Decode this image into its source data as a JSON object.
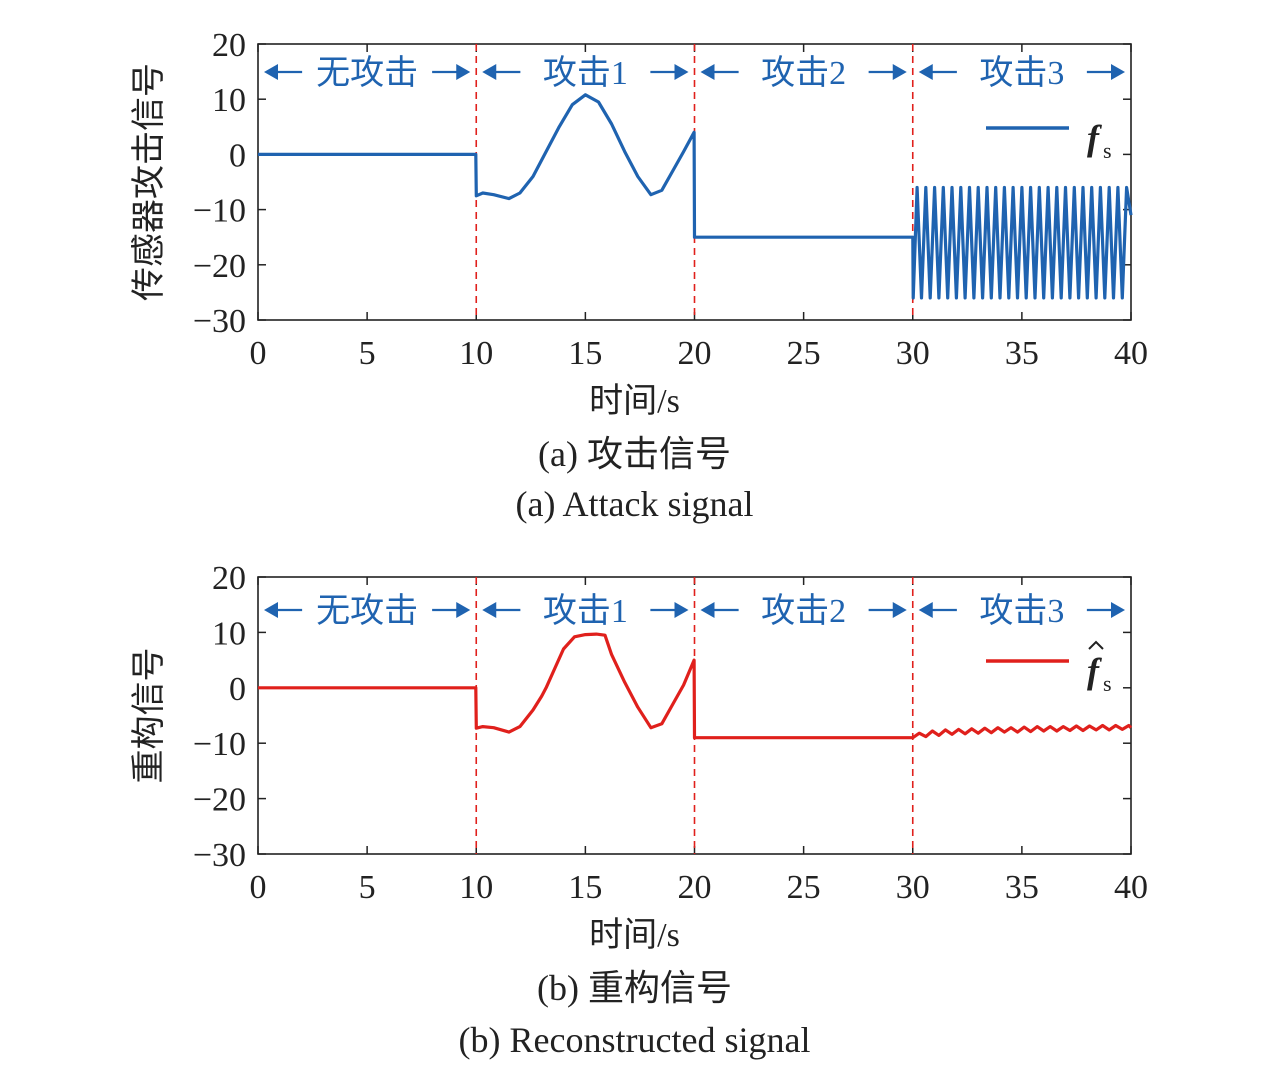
{
  "colors": {
    "attack": "#1f63b0",
    "recon": "#e0201c",
    "divider": "#e0201c",
    "segment_text": "#1f63b0",
    "axis": "#222222"
  },
  "chart_data": [
    {
      "type": "line",
      "panel": "a",
      "xlabel": "时间/s",
      "ylabel": "传感器攻击信号",
      "caption_cn": "(a) 攻击信号",
      "caption_en": "(a) Attack signal",
      "xlim": [
        0,
        40
      ],
      "ylim": [
        -30,
        20
      ],
      "xticks": [
        0,
        5,
        10,
        15,
        20,
        25,
        30,
        35,
        40
      ],
      "yticks": [
        20,
        10,
        0,
        -10,
        -20,
        -30
      ],
      "ytick_labels": [
        "20",
        "10",
        "0",
        "−10",
        "−20",
        "−30"
      ],
      "dividers": [
        10,
        20,
        30
      ],
      "segments": [
        {
          "label": "无攻击",
          "start": 0,
          "end": 10
        },
        {
          "label": "攻击1",
          "start": 10,
          "end": 20
        },
        {
          "label": "攻击2",
          "start": 20,
          "end": 30
        },
        {
          "label": "攻击3",
          "start": 30,
          "end": 40
        }
      ],
      "legend": {
        "main": "f",
        "sub": "s",
        "hat": false,
        "position": "top-right"
      },
      "series": [
        {
          "color": "#1f63b0",
          "x": [
            0,
            9.98,
            10,
            10.3,
            10.8,
            11.5,
            12.0,
            12.6,
            13.2,
            13.8,
            14.4,
            15.0,
            15.6,
            16.2,
            16.8,
            17.4,
            18.0,
            18.5,
            19.0,
            19.5,
            19.98,
            20,
            30,
            30.02,
            30.2,
            30.4,
            30.6,
            30.8,
            31.0,
            31.2,
            31.4,
            31.6,
            31.8,
            32.0,
            32.2,
            32.4,
            32.6,
            32.8,
            33.0,
            33.2,
            33.4,
            33.6,
            33.8,
            34.0,
            34.2,
            34.4,
            34.6,
            34.8,
            35.0,
            35.2,
            35.4,
            35.6,
            35.8,
            36.0,
            36.2,
            36.4,
            36.6,
            36.8,
            37.0,
            37.2,
            37.4,
            37.6,
            37.8,
            38.0,
            38.2,
            38.4,
            38.6,
            38.8,
            39.0,
            39.2,
            39.4,
            39.6,
            39.8,
            40
          ],
          "y": [
            0,
            0,
            -7.5,
            -7.0,
            -7.3,
            -8.0,
            -7.0,
            -4.0,
            0.5,
            5.0,
            9.0,
            10.8,
            9.5,
            5.5,
            0.5,
            -4.0,
            -7.3,
            -6.5,
            -3.0,
            0.5,
            4.0,
            -15,
            -15,
            -26,
            -6,
            -26,
            -6,
            -26,
            -6,
            -26,
            -6,
            -26,
            -6,
            -26,
            -6,
            -26,
            -6,
            -26,
            -6,
            -26,
            -6,
            -26,
            -6,
            -26,
            -6,
            -26,
            -6,
            -26,
            -6,
            -26,
            -6,
            -26,
            -6,
            -26,
            -6,
            -26,
            -6,
            -26,
            -6,
            -26,
            -6,
            -26,
            -6,
            -26,
            -6,
            -26,
            -6,
            -26,
            -6,
            -26,
            -6,
            -26,
            -6,
            -11
          ]
        }
      ]
    },
    {
      "type": "line",
      "panel": "b",
      "xlabel": "时间/s",
      "ylabel": "重构信号",
      "caption_cn": "(b) 重构信号",
      "caption_en": "(b) Reconstructed signal",
      "xlim": [
        0,
        40
      ],
      "ylim": [
        -30,
        20
      ],
      "xticks": [
        0,
        5,
        10,
        15,
        20,
        25,
        30,
        35,
        40
      ],
      "yticks": [
        20,
        10,
        0,
        -10,
        -20,
        -30
      ],
      "ytick_labels": [
        "20",
        "10",
        "0",
        "−10",
        "−20",
        "−30"
      ],
      "dividers": [
        10,
        20,
        30
      ],
      "segments": [
        {
          "label": "无攻击",
          "start": 0,
          "end": 10
        },
        {
          "label": "攻击1",
          "start": 10,
          "end": 20
        },
        {
          "label": "攻击2",
          "start": 20,
          "end": 30
        },
        {
          "label": "攻击3",
          "start": 30,
          "end": 40
        }
      ],
      "legend": {
        "main": "f",
        "sub": "s",
        "hat": true,
        "position": "top-right"
      },
      "series": [
        {
          "color": "#e0201c",
          "x": [
            0,
            9.98,
            10,
            10.3,
            10.8,
            11.5,
            12.0,
            12.6,
            13.0,
            13.2,
            13.6,
            14.0,
            14.5,
            15.0,
            15.5,
            15.9,
            16.2,
            16.8,
            17.4,
            18.0,
            18.5,
            19.0,
            19.5,
            19.98,
            20,
            30,
            30.3,
            30.6,
            30.9,
            31.2,
            31.5,
            31.8,
            32.1,
            32.4,
            32.7,
            33.0,
            33.3,
            33.6,
            33.9,
            34.2,
            34.5,
            34.8,
            35.1,
            35.4,
            35.7,
            36.0,
            36.3,
            36.6,
            36.9,
            37.2,
            37.5,
            37.8,
            38.1,
            38.4,
            38.7,
            39.0,
            39.3,
            39.6,
            39.9,
            40
          ],
          "y": [
            0,
            0,
            -7.3,
            -7.0,
            -7.2,
            -8.0,
            -7.0,
            -4.0,
            -1.5,
            0,
            3.5,
            7.0,
            9.2,
            9.6,
            9.7,
            9.5,
            6.0,
            1.0,
            -3.5,
            -7.2,
            -6.5,
            -3.0,
            0.5,
            5.0,
            -9.0,
            -9.0,
            -8.2,
            -8.8,
            -7.8,
            -8.6,
            -7.6,
            -8.4,
            -7.5,
            -8.3,
            -7.4,
            -8.2,
            -7.3,
            -8.1,
            -7.2,
            -8.0,
            -7.2,
            -8.0,
            -7.1,
            -7.9,
            -7.0,
            -7.8,
            -7.0,
            -7.8,
            -7.0,
            -7.7,
            -6.9,
            -7.7,
            -6.9,
            -7.6,
            -6.8,
            -7.6,
            -6.8,
            -7.5,
            -6.8,
            -7.2
          ]
        }
      ]
    }
  ]
}
